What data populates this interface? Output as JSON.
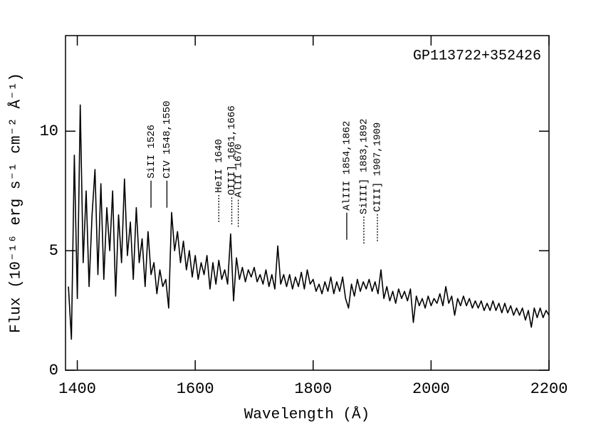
{
  "chart_data": {
    "type": "line",
    "xlabel": "Wavelength (Å)",
    "ylabel": "Flux (10⁻¹⁶ erg s⁻¹ cm⁻² Å⁻¹)",
    "label": "GP113722+352426",
    "xlim": [
      1380,
      2200
    ],
    "ylim": [
      0,
      14
    ],
    "xticks": [
      1400,
      1600,
      1800,
      2000,
      2200
    ],
    "yticks": [
      0,
      5,
      10
    ],
    "color": "#000000",
    "annotations": [
      {
        "text": "SiII 1526",
        "x": 1525,
        "y": 6.8,
        "style": "solid"
      },
      {
        "text": "CIV 1548,1550",
        "x": 1552,
        "y": 6.8,
        "style": "solid"
      },
      {
        "text": "HeII 1640",
        "x": 1640,
        "y": 6.2,
        "style": "dotted"
      },
      {
        "text": "OIII] 1661,1666",
        "x": 1662,
        "y": 6.1,
        "style": "dotted"
      },
      {
        "text": "AlII 1670",
        "x": 1673,
        "y": 6.0,
        "style": "dotted"
      },
      {
        "text": "AlIII 1854,1862",
        "x": 1857,
        "y": 5.46,
        "style": "solid"
      },
      {
        "text": "SiIII] 1883,1892",
        "x": 1886,
        "y": 5.3,
        "style": "dotted"
      },
      {
        "text": "CIII] 1907,1909",
        "x": 1909,
        "y": 5.4,
        "style": "dotted"
      }
    ],
    "x": [
      1385,
      1390,
      1395,
      1400,
      1405,
      1410,
      1415,
      1420,
      1425,
      1430,
      1435,
      1440,
      1445,
      1450,
      1455,
      1460,
      1465,
      1470,
      1475,
      1480,
      1485,
      1490,
      1495,
      1500,
      1505,
      1510,
      1515,
      1520,
      1525,
      1530,
      1535,
      1540,
      1545,
      1550,
      1555,
      1560,
      1565,
      1570,
      1575,
      1580,
      1585,
      1590,
      1595,
      1600,
      1605,
      1610,
      1615,
      1620,
      1625,
      1630,
      1635,
      1640,
      1645,
      1650,
      1655,
      1660,
      1665,
      1670,
      1675,
      1680,
      1685,
      1690,
      1695,
      1700,
      1705,
      1710,
      1715,
      1720,
      1725,
      1730,
      1735,
      1740,
      1745,
      1750,
      1755,
      1760,
      1765,
      1770,
      1775,
      1780,
      1785,
      1790,
      1795,
      1800,
      1805,
      1810,
      1815,
      1820,
      1825,
      1830,
      1835,
      1840,
      1845,
      1850,
      1855,
      1860,
      1865,
      1870,
      1875,
      1880,
      1885,
      1890,
      1895,
      1900,
      1905,
      1910,
      1915,
      1920,
      1925,
      1930,
      1935,
      1940,
      1945,
      1950,
      1955,
      1960,
      1965,
      1970,
      1975,
      1980,
      1985,
      1990,
      1995,
      2000,
      2005,
      2010,
      2015,
      2020,
      2025,
      2030,
      2035,
      2040,
      2045,
      2050,
      2055,
      2060,
      2065,
      2070,
      2075,
      2080,
      2085,
      2090,
      2095,
      2100,
      2105,
      2110,
      2115,
      2120,
      2125,
      2130,
      2135,
      2140,
      2145,
      2150,
      2155,
      2160,
      2165,
      2170,
      2175,
      2180,
      2185,
      2190,
      2195,
      2200
    ],
    "values": [
      3.5,
      1.3,
      9.0,
      3.0,
      11.1,
      4.5,
      7.5,
      3.5,
      6.5,
      8.4,
      4.0,
      7.8,
      3.8,
      6.8,
      5.0,
      7.5,
      3.1,
      6.5,
      4.5,
      8.0,
      4.8,
      6.2,
      3.8,
      6.8,
      4.5,
      5.5,
      3.5,
      5.8,
      4.0,
      4.5,
      3.2,
      4.2,
      3.5,
      3.8,
      2.6,
      6.6,
      5.0,
      5.8,
      4.5,
      5.4,
      4.2,
      5.0,
      3.9,
      4.8,
      3.8,
      4.5,
      4.0,
      4.8,
      3.4,
      4.5,
      3.6,
      4.6,
      3.8,
      4.2,
      3.6,
      5.7,
      2.9,
      4.7,
      3.8,
      4.3,
      3.7,
      4.2,
      3.9,
      4.3,
      3.7,
      4.0,
      3.6,
      4.2,
      3.5,
      4.0,
      3.4,
      5.2,
      3.6,
      4.0,
      3.5,
      4.0,
      3.4,
      3.9,
      3.5,
      4.1,
      3.4,
      4.2,
      3.6,
      3.8,
      3.3,
      3.6,
      3.2,
      3.7,
      3.3,
      3.9,
      3.2,
      3.7,
      3.3,
      3.9,
      3.0,
      2.6,
      3.6,
      3.1,
      3.8,
      3.3,
      3.7,
      3.4,
      3.8,
      3.3,
      3.7,
      3.2,
      4.2,
      3.0,
      3.5,
      2.9,
      3.3,
      2.8,
      3.4,
      3.0,
      3.3,
      2.9,
      3.4,
      2.0,
      3.1,
      2.7,
      3.0,
      2.6,
      3.1,
      2.7,
      3.0,
      2.8,
      3.2,
      2.7,
      3.5,
      2.8,
      3.1,
      2.3,
      3.0,
      2.7,
      3.1,
      2.7,
      3.0,
      2.6,
      2.9,
      2.6,
      2.9,
      2.5,
      2.8,
      2.5,
      2.9,
      2.5,
      2.8,
      2.4,
      2.8,
      2.4,
      2.7,
      2.3,
      2.6,
      2.3,
      2.6,
      2.1,
      2.5,
      1.8,
      2.6,
      2.2,
      2.6,
      2.2,
      2.5,
      2.3
    ]
  }
}
